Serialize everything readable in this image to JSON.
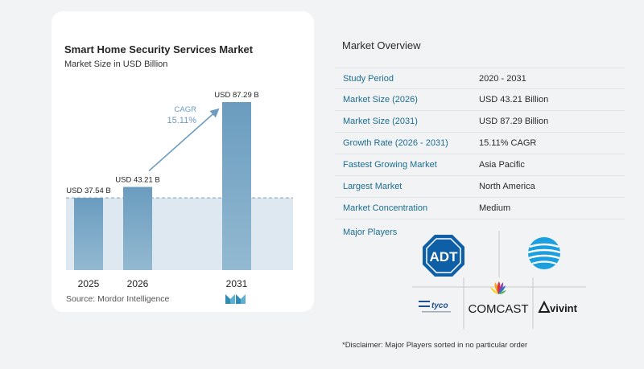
{
  "chart": {
    "title": "Smart Home Security Services Market",
    "subtitle": "Market Size in USD Billion",
    "source": "Source:  Mordor Intelligence",
    "logo_icon": "mordor-intelligence-logo",
    "cagr_label": "CAGR",
    "cagr_value": "15.11%"
  },
  "chart_data": {
    "type": "bar",
    "categories": [
      "2025",
      "2026",
      "2031"
    ],
    "values": [
      37.54,
      43.21,
      87.29
    ],
    "data_labels": [
      "USD 37.54 B",
      "USD 43.21 B",
      "USD 87.29 B"
    ],
    "title": "Smart Home Security Services Market",
    "subtitle": "Market Size in USD Billion",
    "xlabel": "",
    "ylabel": "",
    "ylim": [
      0,
      87.29
    ],
    "grid": false,
    "colors": {
      "bar_top": "#6e9fc0",
      "bar_bottom": "#8fb6cf",
      "band": "#dde8f0",
      "arrow": "#6b9bc0",
      "cagr_text": "#6b9bc0"
    }
  },
  "overview": {
    "title": "Market Overview",
    "rows": [
      {
        "label": "Study Period",
        "value": "2020 - 2031"
      },
      {
        "label": "Market Size (2026)",
        "value": "USD 43.21 Billion"
      },
      {
        "label": "Market Size (2031)",
        "value": "USD 87.29 Billion"
      },
      {
        "label": "Growth Rate (2026 - 2031)",
        "value": "15.11% CAGR"
      },
      {
        "label": "Fastest Growing Market",
        "value": "Asia Pacific"
      },
      {
        "label": "Largest Market",
        "value": "North America"
      },
      {
        "label": "Market Concentration",
        "value": "Medium"
      }
    ],
    "major_players_title": "Major Players",
    "players": [
      {
        "name": "ADT",
        "icon": "adt-logo"
      },
      {
        "name": "AT&T",
        "icon": "att-globe-logo"
      },
      {
        "name": "tyco",
        "icon": "tyco-logo"
      },
      {
        "name": "COMCAST",
        "icon": "comcast-peacock-logo"
      },
      {
        "name": "vivint",
        "icon": "vivint-logo"
      }
    ],
    "disclaimer": "*Disclaimer: Major Players sorted in no particular order"
  },
  "colors": {
    "accent": "#1b6d8f",
    "background": "#f2f3f5"
  }
}
